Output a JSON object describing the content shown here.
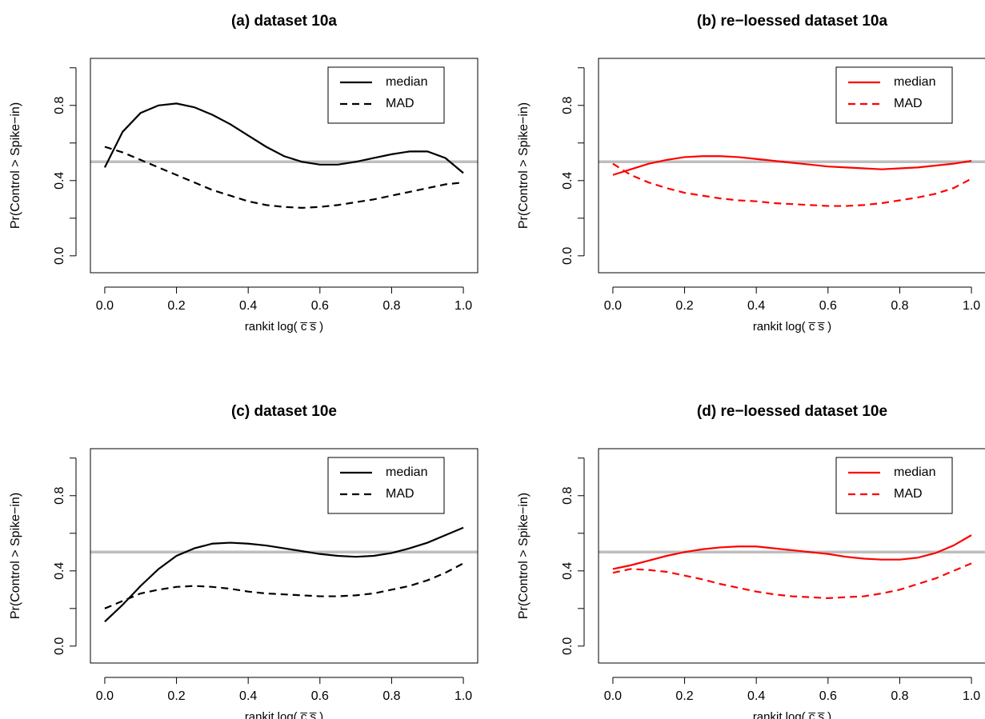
{
  "chart_data": [
    {
      "type": "line",
      "title": "(a) dataset 10a",
      "x_label": "rankit log( c̅ s̅ )",
      "y_label": "Pr(Control > Spike−in)",
      "x": [
        0,
        0.05,
        0.1,
        0.15,
        0.2,
        0.25,
        0.3,
        0.35,
        0.4,
        0.45,
        0.5,
        0.55,
        0.6,
        0.65,
        0.7,
        0.75,
        0.8,
        0.85,
        0.9,
        0.95,
        1.0
      ],
      "series": [
        {
          "name": "median",
          "color": "#000000",
          "line_style": "solid",
          "values": [
            0.47,
            0.66,
            0.76,
            0.8,
            0.81,
            0.79,
            0.75,
            0.7,
            0.64,
            0.58,
            0.53,
            0.5,
            0.485,
            0.485,
            0.5,
            0.52,
            0.54,
            0.555,
            0.555,
            0.52,
            0.44
          ]
        },
        {
          "name": "MAD",
          "color": "#000000",
          "line_style": "dashed",
          "values": [
            0.58,
            0.55,
            0.51,
            0.47,
            0.43,
            0.39,
            0.35,
            0.32,
            0.29,
            0.27,
            0.26,
            0.255,
            0.26,
            0.27,
            0.285,
            0.3,
            0.32,
            0.34,
            0.36,
            0.38,
            0.39
          ]
        }
      ],
      "xlim": [
        -0.04,
        1.04
      ],
      "ylim": [
        -0.09,
        1.05
      ],
      "xticks": [
        {
          "value": 0,
          "label": "0.0"
        },
        0.2,
        0.4,
        0.6,
        0.8,
        {
          "value": 1,
          "label": "1.0"
        }
      ],
      "yticks": [
        {
          "value": 0,
          "label": "0.0"
        },
        {
          "value": 0.2,
          "label": null
        },
        0.4,
        {
          "value": 0.6,
          "label": null
        },
        0.8,
        {
          "value": 1,
          "label": null
        }
      ],
      "hline": 0.5,
      "hline_color": "#bebebe",
      "legend": "top-right"
    },
    {
      "type": "line",
      "title": "(b) re−loessed dataset 10a",
      "x_label": "rankit log( c̅ s̅ )",
      "y_label": "Pr(Control > Spike−in)",
      "x": [
        0,
        0.05,
        0.1,
        0.15,
        0.2,
        0.25,
        0.3,
        0.35,
        0.4,
        0.45,
        0.5,
        0.55,
        0.6,
        0.65,
        0.7,
        0.75,
        0.8,
        0.85,
        0.9,
        0.95,
        1.0
      ],
      "series": [
        {
          "name": "median",
          "color": "#ff0000",
          "line_style": "solid",
          "values": [
            0.43,
            0.46,
            0.49,
            0.51,
            0.525,
            0.53,
            0.53,
            0.525,
            0.515,
            0.505,
            0.495,
            0.485,
            0.475,
            0.47,
            0.465,
            0.46,
            0.465,
            0.47,
            0.48,
            0.49,
            0.505
          ]
        },
        {
          "name": "MAD",
          "color": "#ff0000",
          "line_style": "dashed",
          "values": [
            0.49,
            0.43,
            0.39,
            0.36,
            0.335,
            0.32,
            0.305,
            0.295,
            0.29,
            0.28,
            0.275,
            0.27,
            0.265,
            0.265,
            0.27,
            0.28,
            0.295,
            0.31,
            0.33,
            0.36,
            0.41
          ]
        }
      ],
      "xlim": [
        -0.04,
        1.04
      ],
      "ylim": [
        -0.09,
        1.05
      ],
      "xticks": [
        {
          "value": 0,
          "label": "0.0"
        },
        0.2,
        0.4,
        0.6,
        0.8,
        {
          "value": 1,
          "label": "1.0"
        }
      ],
      "yticks": [
        {
          "value": 0,
          "label": "0.0"
        },
        {
          "value": 0.2,
          "label": null
        },
        0.4,
        {
          "value": 0.6,
          "label": null
        },
        0.8,
        {
          "value": 1,
          "label": null
        }
      ],
      "hline": 0.5,
      "hline_color": "#bebebe",
      "legend": "top-right"
    },
    {
      "type": "line",
      "title": "(c) dataset 10e",
      "x_label": "rankit log( c̅ s̅ )",
      "y_label": "Pr(Control > Spike−in)",
      "x": [
        0,
        0.05,
        0.1,
        0.15,
        0.2,
        0.25,
        0.3,
        0.35,
        0.4,
        0.45,
        0.5,
        0.55,
        0.6,
        0.65,
        0.7,
        0.75,
        0.8,
        0.85,
        0.9,
        0.95,
        1.0
      ],
      "series": [
        {
          "name": "median",
          "color": "#000000",
          "line_style": "solid",
          "values": [
            0.13,
            0.22,
            0.32,
            0.41,
            0.48,
            0.52,
            0.545,
            0.55,
            0.545,
            0.535,
            0.52,
            0.505,
            0.49,
            0.48,
            0.475,
            0.48,
            0.495,
            0.52,
            0.55,
            0.59,
            0.63
          ]
        },
        {
          "name": "MAD",
          "color": "#000000",
          "line_style": "dashed",
          "values": [
            0.2,
            0.24,
            0.28,
            0.3,
            0.315,
            0.32,
            0.315,
            0.305,
            0.29,
            0.28,
            0.275,
            0.27,
            0.265,
            0.265,
            0.27,
            0.28,
            0.3,
            0.32,
            0.35,
            0.39,
            0.44
          ]
        }
      ],
      "xlim": [
        -0.04,
        1.04
      ],
      "ylim": [
        -0.09,
        1.05
      ],
      "xticks": [
        {
          "value": 0,
          "label": "0.0"
        },
        0.2,
        0.4,
        0.6,
        0.8,
        {
          "value": 1,
          "label": "1.0"
        }
      ],
      "yticks": [
        {
          "value": 0,
          "label": "0.0"
        },
        {
          "value": 0.2,
          "label": null
        },
        0.4,
        {
          "value": 0.6,
          "label": null
        },
        0.8,
        {
          "value": 1,
          "label": null
        }
      ],
      "hline": 0.5,
      "hline_color": "#bebebe",
      "legend": "top-right"
    },
    {
      "type": "line",
      "title": "(d) re−loessed dataset 10e",
      "x_label": "rankit log( c̅ s̅ )",
      "y_label": "Pr(Control > Spike−in)",
      "x": [
        0,
        0.05,
        0.1,
        0.15,
        0.2,
        0.25,
        0.3,
        0.35,
        0.4,
        0.45,
        0.5,
        0.55,
        0.6,
        0.65,
        0.7,
        0.75,
        0.8,
        0.85,
        0.9,
        0.95,
        1.0
      ],
      "series": [
        {
          "name": "median",
          "color": "#ff0000",
          "line_style": "solid",
          "values": [
            0.41,
            0.43,
            0.455,
            0.48,
            0.5,
            0.515,
            0.525,
            0.53,
            0.53,
            0.52,
            0.51,
            0.5,
            0.49,
            0.475,
            0.465,
            0.46,
            0.46,
            0.47,
            0.495,
            0.535,
            0.59
          ]
        },
        {
          "name": "MAD",
          "color": "#ff0000",
          "line_style": "dashed",
          "values": [
            0.39,
            0.41,
            0.405,
            0.395,
            0.375,
            0.355,
            0.33,
            0.31,
            0.29,
            0.275,
            0.265,
            0.26,
            0.255,
            0.26,
            0.265,
            0.28,
            0.3,
            0.33,
            0.36,
            0.4,
            0.44
          ]
        }
      ],
      "xlim": [
        -0.04,
        1.04
      ],
      "ylim": [
        -0.09,
        1.05
      ],
      "xticks": [
        {
          "value": 0,
          "label": "0.0"
        },
        0.2,
        0.4,
        0.6,
        0.8,
        {
          "value": 1,
          "label": "1.0"
        }
      ],
      "yticks": [
        {
          "value": 0,
          "label": "0.0"
        },
        {
          "value": 0.2,
          "label": null
        },
        0.4,
        {
          "value": 0.6,
          "label": null
        },
        0.8,
        {
          "value": 1,
          "label": null
        }
      ],
      "hline": 0.5,
      "hline_color": "#bebebe",
      "legend": "top-right"
    }
  ]
}
